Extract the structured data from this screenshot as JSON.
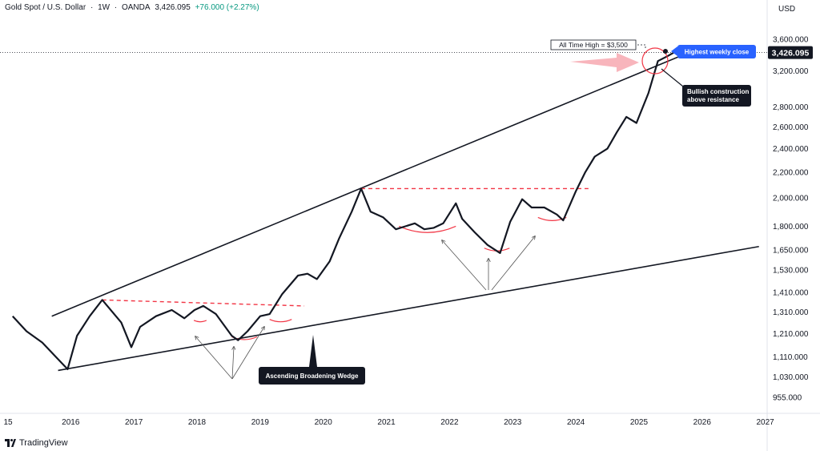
{
  "header": {
    "symbol": "Gold Spot / U.S. Dollar",
    "interval": "1W",
    "source": "OANDA",
    "price": "3,426.095",
    "change": "+76.000 (+2.27%)",
    "sep": "·"
  },
  "currency": "USD",
  "branding": "TradingView",
  "colors": {
    "price_line": "#131722",
    "trendline": "#131722",
    "resistance": "#f23645",
    "arc": "#f23645",
    "callout_blue": "#2962ff",
    "callout_dark": "#131722",
    "arrow_pink": "#f7a8b0"
  },
  "chart_data": {
    "type": "line",
    "title": "",
    "xlabel": "",
    "ylabel": "",
    "y_scale": "log",
    "ylim": [
      900,
      3900
    ],
    "x_tick_labels": [
      "15",
      "2016",
      "2017",
      "2018",
      "2019",
      "2020",
      "2021",
      "2022",
      "2023",
      "2024",
      "2025",
      "2026",
      "2027"
    ],
    "y_tick_labels": [
      "3,600.000",
      "3,200.000",
      "2,800.000",
      "2,600.000",
      "2,400.000",
      "2,200.000",
      "2,000.000",
      "1,800.000",
      "1,650.000",
      "1,530.000",
      "1,410.000",
      "1,310.000",
      "1,210.000",
      "1,110.000",
      "1,030.000",
      "955.000"
    ],
    "y_tick_values": [
      3600,
      3200,
      2800,
      2600,
      2400,
      2200,
      2000,
      1800,
      1650,
      1530,
      1410,
      1310,
      1210,
      1110,
      1030,
      955
    ],
    "last_price_label": "3,426.095",
    "last_price": 3426.095,
    "series": [
      {
        "x": [
          2015.08,
          2015.3,
          2015.55,
          2015.8,
          2015.95,
          2016.1,
          2016.3,
          2016.5,
          2016.8,
          2016.96,
          2017.1,
          2017.35,
          2017.6,
          2017.8,
          2017.96,
          2018.1,
          2018.3,
          2018.55,
          2018.65,
          2018.8,
          2019.0,
          2019.15,
          2019.35,
          2019.6,
          2019.75,
          2019.9,
          2020.1,
          2020.25,
          2020.45,
          2020.6,
          2020.75,
          2020.95,
          2021.15,
          2021.3,
          2021.45,
          2021.6,
          2021.75,
          2021.9,
          2022.1,
          2022.2,
          2022.4,
          2022.6,
          2022.8,
          2022.96,
          2023.15,
          2023.3,
          2023.5,
          2023.7,
          2023.8,
          2024.0,
          2024.15,
          2024.3,
          2024.5,
          2024.65,
          2024.8,
          2024.96,
          2025.15,
          2025.3,
          2025.45,
          2025.55
        ],
        "values": [
          1290,
          1220,
          1170,
          1100,
          1060,
          1200,
          1290,
          1370,
          1260,
          1150,
          1240,
          1290,
          1320,
          1280,
          1320,
          1340,
          1300,
          1200,
          1180,
          1220,
          1290,
          1300,
          1400,
          1500,
          1510,
          1480,
          1580,
          1720,
          1900,
          2070,
          1900,
          1860,
          1780,
          1800,
          1820,
          1780,
          1790,
          1820,
          1960,
          1850,
          1760,
          1680,
          1630,
          1830,
          1990,
          1930,
          1930,
          1880,
          1840,
          2050,
          2200,
          2330,
          2400,
          2550,
          2700,
          2640,
          2950,
          3320,
          3380,
          3426
        ]
      }
    ],
    "annotations": {
      "ath_label": "All Time High = $3,500",
      "ath_value": 3500,
      "weekly_close": "Highest weekly close",
      "bullish": "Bullish construction above resistance",
      "wedge": "Ascending Broadening Wedge"
    },
    "resistance_levels": [
      {
        "y": 1370,
        "x_start": 2016.5,
        "x_end": 2019.7,
        "y_end": 1340
      },
      {
        "y": 2070,
        "x_start": 2020.6,
        "x_end": 2024.2
      }
    ],
    "trendlines": [
      {
        "from": [
          2015.7,
          1290
        ],
        "to": [
          2025.8,
          3430
        ]
      },
      {
        "from": [
          2015.8,
          1055
        ],
        "to": [
          2026.9,
          1670
        ]
      }
    ]
  }
}
